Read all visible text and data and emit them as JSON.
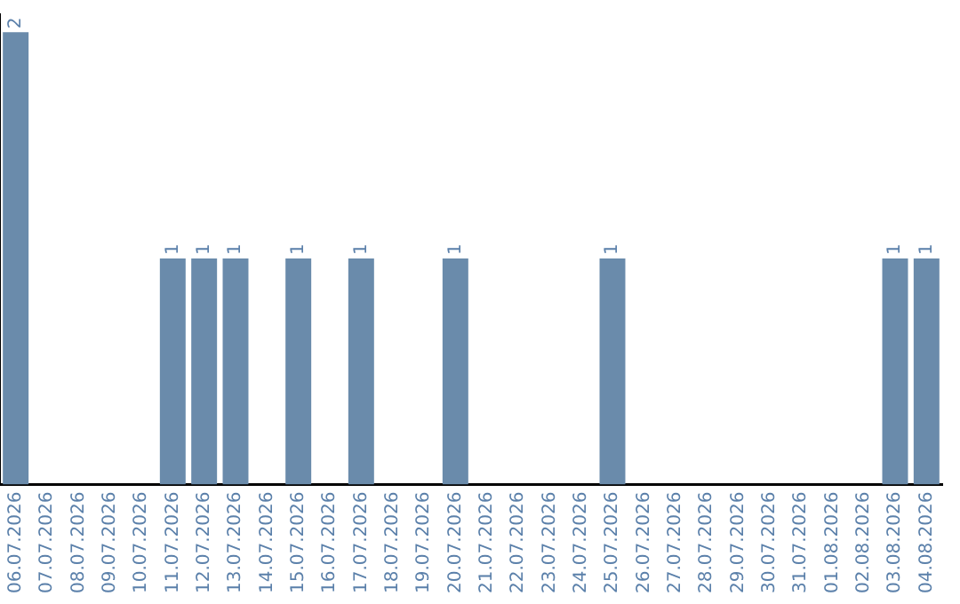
{
  "chart_data": {
    "type": "bar",
    "categories": [
      "06.07.2026",
      "07.07.2026",
      "08.07.2026",
      "09.07.2026",
      "10.07.2026",
      "11.07.2026",
      "12.07.2026",
      "13.07.2026",
      "14.07.2026",
      "15.07.2026",
      "16.07.2026",
      "17.07.2026",
      "18.07.2026",
      "19.07.2026",
      "20.07.2026",
      "21.07.2026",
      "22.07.2026",
      "23.07.2026",
      "24.07.2026",
      "25.07.2026",
      "26.07.2026",
      "27.07.2026",
      "28.07.2026",
      "29.07.2026",
      "30.07.2026",
      "31.07.2026",
      "01.08.2026",
      "02.08.2026",
      "03.08.2026",
      "04.08.2026"
    ],
    "values": [
      2,
      0,
      0,
      0,
      0,
      1,
      1,
      1,
      0,
      1,
      0,
      1,
      0,
      0,
      1,
      0,
      0,
      0,
      0,
      1,
      0,
      0,
      0,
      0,
      0,
      0,
      0,
      0,
      1,
      1
    ],
    "value_labels": [
      "2",
      null,
      null,
      null,
      null,
      "1",
      "1",
      "1",
      null,
      "1",
      null,
      "1",
      null,
      null,
      "1",
      null,
      null,
      null,
      null,
      "1",
      null,
      null,
      null,
      null,
      null,
      null,
      null,
      null,
      "1",
      "1"
    ],
    "color": "#6a8bab",
    "ylim": [
      0,
      2.08
    ],
    "tick_labels": "x",
    "grid": false,
    "legend": false
  }
}
